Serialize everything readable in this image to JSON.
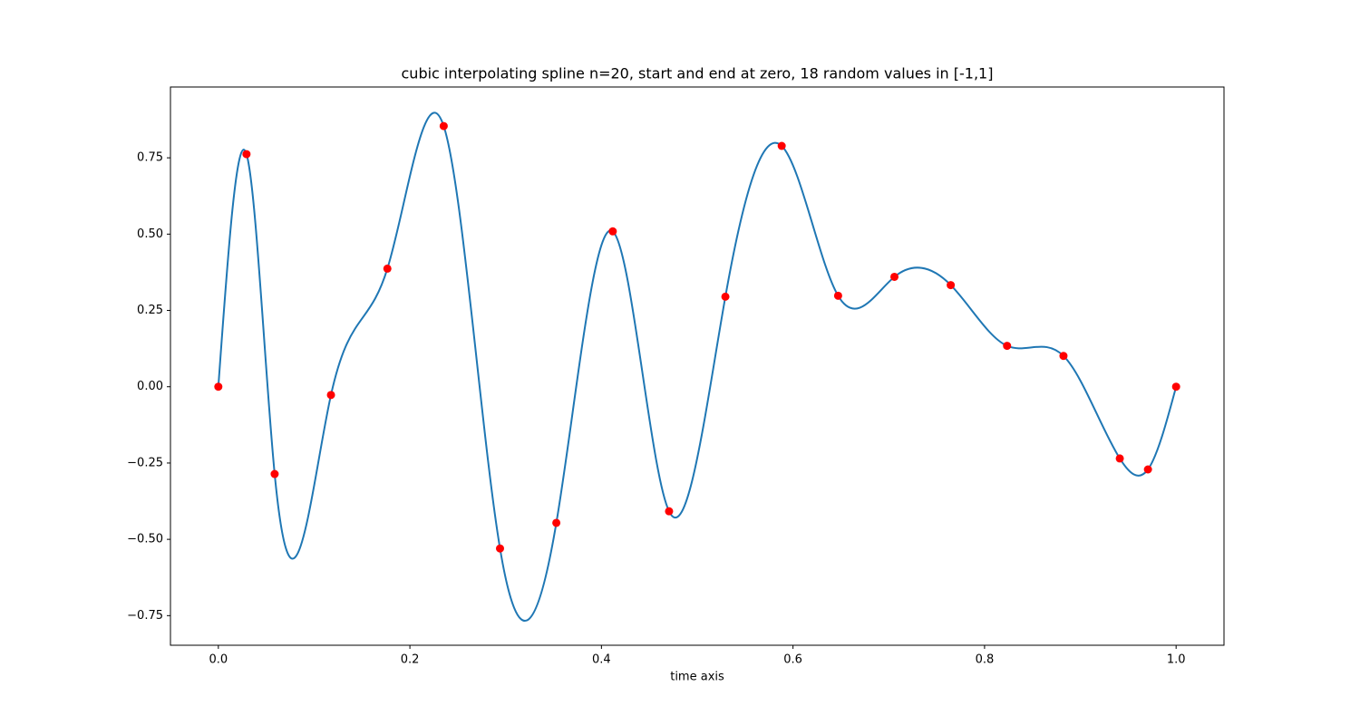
{
  "chart_data": {
    "type": "line",
    "title": "cubic interpolating spline n=20, start and end at zero, 18 random values in [-1,1]",
    "x_label": "time axis",
    "interpolation": "cubic spline",
    "x": [
      0,
      0.0294,
      0.0588,
      0.1176,
      0.1765,
      0.2353,
      0.2941,
      0.3529,
      0.4118,
      0.4706,
      0.5294,
      0.5882,
      0.6471,
      0.7059,
      0.7647,
      0.8235,
      0.8824,
      0.9412,
      0.9706,
      1.0
    ],
    "series": [
      {
        "color": "#1f77b4",
        "marker_color": "#ff0000",
        "values": [
          0,
          0.762,
          -0.286,
          -0.027,
          0.387,
          0.854,
          -0.53,
          -0.446,
          0.509,
          -0.408,
          0.295,
          0.789,
          0.298,
          0.36,
          0.333,
          0.134,
          0.101,
          -0.235,
          -0.271,
          0
        ]
      }
    ],
    "xlim": [
      -0.05,
      1.05
    ],
    "ylim": [
      -0.847,
      0.982
    ],
    "xticks": [
      {
        "value": 0,
        "label": "0.0"
      },
      0.2,
      0.4,
      0.6,
      0.8,
      {
        "value": 1,
        "label": "1.0"
      }
    ],
    "yticks": [
      {
        "value": -0.75,
        "label": "−0.75"
      },
      {
        "value": -0.5,
        "label": "−0.50"
      },
      {
        "value": -0.25,
        "label": "−0.25"
      },
      {
        "value": 0,
        "label": "0.00"
      },
      {
        "value": 0.25,
        "label": "0.25"
      },
      {
        "value": 0.5,
        "label": "0.50"
      },
      0.75
    ]
  }
}
